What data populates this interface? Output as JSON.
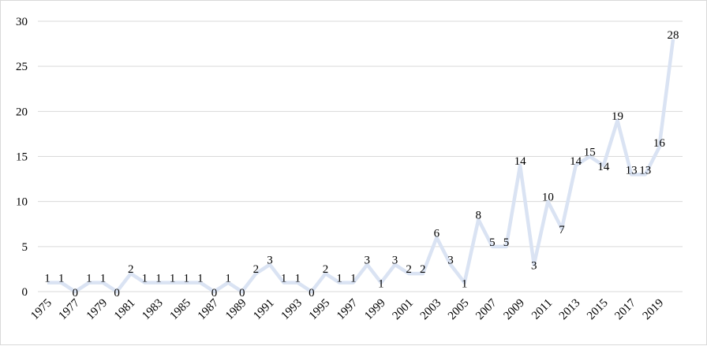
{
  "chart_data": {
    "type": "line",
    "title": "",
    "xlabel": "",
    "ylabel": "",
    "x": [
      1975,
      1976,
      1977,
      1978,
      1979,
      1980,
      1981,
      1982,
      1983,
      1984,
      1985,
      1986,
      1987,
      1988,
      1989,
      1990,
      1991,
      1992,
      1993,
      1994,
      1995,
      1996,
      1997,
      1998,
      1999,
      2000,
      2001,
      2002,
      2003,
      2004,
      2005,
      2006,
      2007,
      2008,
      2009,
      2010,
      2011,
      2012,
      2013,
      2014,
      2015,
      2016,
      2017,
      2018,
      2019,
      2020
    ],
    "x_tick_labels": [
      "1975",
      "1977",
      "1979",
      "1981",
      "1983",
      "1985",
      "1987",
      "1989",
      "1991",
      "1993",
      "1995",
      "1997",
      "1999",
      "2001",
      "2003",
      "2005",
      "2007",
      "2009",
      "2011",
      "2013",
      "2015",
      "2017",
      "2019"
    ],
    "series": [
      {
        "values": [
          1,
          1,
          0,
          1,
          1,
          0,
          2,
          1,
          1,
          1,
          1,
          1,
          0,
          1,
          0,
          2,
          3,
          1,
          1,
          0,
          2,
          1,
          1,
          3,
          1,
          3,
          2,
          2,
          6,
          3,
          1,
          8,
          5,
          5,
          14,
          3,
          10,
          7,
          14,
          15,
          14,
          19,
          13,
          13,
          16,
          28
        ],
        "color": "#dae3f3"
      }
    ],
    "ylim": [
      0,
      30
    ],
    "y_ticks": [
      0,
      5,
      10,
      15,
      20,
      25,
      30
    ],
    "grid": true,
    "legend": "none"
  }
}
